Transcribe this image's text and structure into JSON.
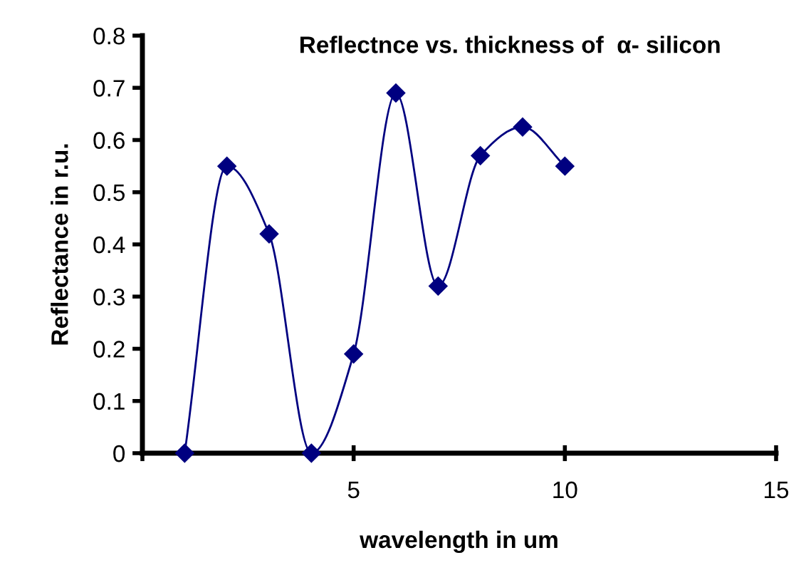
{
  "chart_data": {
    "type": "line",
    "title": "Reflectnce vs. thickness of  α- silicon",
    "xlabel": "wavelength in um",
    "ylabel": "Reflectance in r.u.",
    "x": [
      1,
      2,
      3,
      4,
      5,
      6,
      7,
      8,
      9,
      10
    ],
    "series": [
      {
        "color": "#000080",
        "values": [
          0,
          0.55,
          0.42,
          0,
          0.19,
          0.69,
          0.32,
          0.57,
          0.625,
          0.55
        ]
      }
    ],
    "xlim": [
      0,
      15
    ],
    "xticks": [
      {
        "value": 0,
        "label": null
      },
      5,
      10,
      15
    ],
    "ylim": [
      0,
      0.8
    ],
    "yticks": [
      0,
      0.1,
      0.2,
      0.3,
      0.4,
      0.5,
      0.6,
      0.7,
      0.8
    ],
    "marker": "diamond",
    "line_style": "solid",
    "grid": false,
    "legend": false
  }
}
